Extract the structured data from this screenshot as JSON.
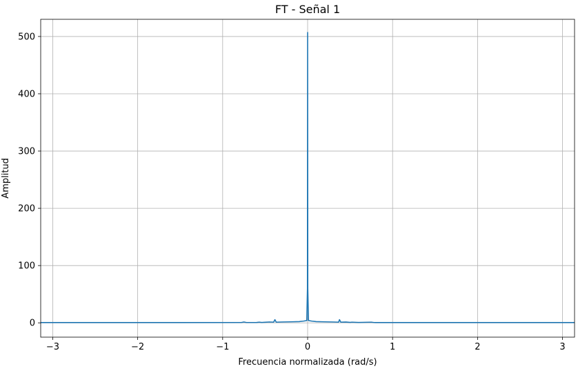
{
  "chart_data": {
    "type": "line",
    "title": "FT - Señal 1",
    "xlabel": "Frecuencia normalizada (rad/s)",
    "ylabel": "Amplitud",
    "xlim": [
      -3.1416,
      3.1416
    ],
    "ylim": [
      -25,
      530
    ],
    "grid": true,
    "xticks": [
      -3,
      -2,
      -1,
      0,
      1,
      2,
      3
    ],
    "xtick_labels": [
      "−3",
      "−2",
      "−1",
      "0",
      "1",
      "2",
      "3"
    ],
    "yticks": [
      0,
      100,
      200,
      300,
      400,
      500
    ],
    "ytick_labels": [
      "0",
      "100",
      "200",
      "300",
      "400",
      "500"
    ],
    "series": [
      {
        "color": "#1f77b4",
        "x": [
          -3.1416,
          -1.5,
          -0.78,
          -0.75,
          -0.72,
          -0.6,
          -0.57,
          -0.54,
          -0.45,
          -0.4,
          -0.385,
          -0.37,
          -0.3,
          -0.2,
          -0.1,
          -0.05,
          -0.01,
          -0.002,
          0,
          0.002,
          0.01,
          0.05,
          0.1,
          0.2,
          0.3,
          0.365,
          0.375,
          0.39,
          0.45,
          0.5,
          0.52,
          0.6,
          0.75,
          0.78,
          0.8,
          1.5,
          3.1416
        ],
        "y": [
          0.5,
          0.5,
          0.6,
          1.5,
          0.6,
          0.7,
          1.2,
          0.7,
          1.5,
          1.2,
          5.5,
          1.2,
          1.5,
          1.8,
          2.2,
          3,
          4,
          60,
          507,
          60,
          4,
          3,
          2.2,
          1.8,
          1.5,
          1.2,
          5.5,
          1.2,
          1.4,
          0.8,
          1.2,
          0.7,
          1.2,
          0.6,
          0.5,
          0.5,
          0.5
        ]
      }
    ]
  }
}
